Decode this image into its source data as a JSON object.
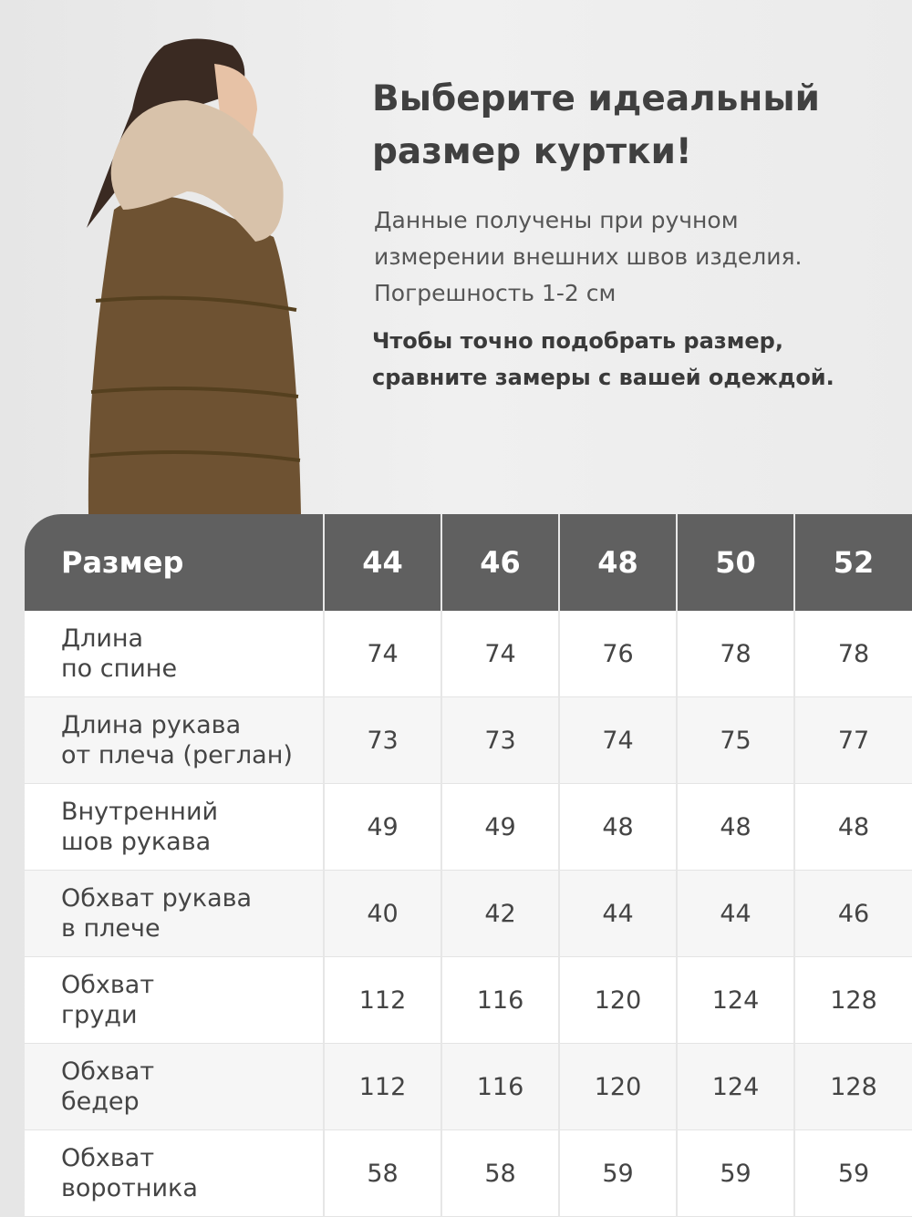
{
  "headline": [
    "Выберите идеальный",
    "размер куртки!"
  ],
  "subtitle": [
    "Данные получены при ручном",
    "измерении внешних швов изделия.",
    "Погрешность 1-2 см"
  ],
  "note": [
    "Чтобы точно подобрать размер,",
    "сравните замеры с вашей одеждой."
  ],
  "colors": {
    "header": "#606060",
    "jacket": "#6e5232",
    "fur": "#d8c2aa"
  },
  "table": {
    "header": [
      "Размер",
      "44",
      "46",
      "48",
      "50",
      "52"
    ],
    "rows": [
      {
        "label": [
          "Длина",
          "по спине"
        ],
        "values": [
          "74",
          "74",
          "76",
          "78",
          "78"
        ]
      },
      {
        "label": [
          "Длина рукава",
          "от плеча (реглан)"
        ],
        "values": [
          "73",
          "73",
          "74",
          "75",
          "77"
        ]
      },
      {
        "label": [
          "Внутренний",
          "шов рукава"
        ],
        "values": [
          "49",
          "49",
          "48",
          "48",
          "48"
        ]
      },
      {
        "label": [
          "Обхват рукава",
          "в плече"
        ],
        "values": [
          "40",
          "42",
          "44",
          "44",
          "46"
        ]
      },
      {
        "label": [
          "Обхват",
          "груди"
        ],
        "values": [
          "112",
          "116",
          "120",
          "124",
          "128"
        ]
      },
      {
        "label": [
          "Обхват",
          "бедер"
        ],
        "values": [
          "112",
          "116",
          "120",
          "124",
          "128"
        ]
      },
      {
        "label": [
          "Обхват",
          "воротника"
        ],
        "values": [
          "58",
          "58",
          "59",
          "59",
          "59"
        ]
      }
    ]
  }
}
